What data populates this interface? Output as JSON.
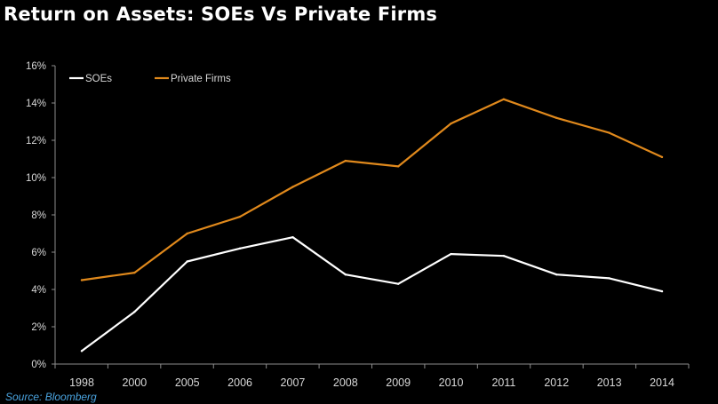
{
  "title": "Return on Assets: SOEs Vs Private Firms",
  "source": "Source: Bloomberg",
  "colors": {
    "background": "#000000",
    "soes": "#ffffff",
    "private_firms": "#e0891c",
    "axis_text": "#d8d8d8",
    "axis_line": "#8c8c8c",
    "source_text": "#4aa3df"
  },
  "chart_data": {
    "type": "line",
    "title": "Return on Assets: SOEs Vs Private Firms",
    "xlabel": "",
    "ylabel": "",
    "categories": [
      "1998",
      "2000",
      "2005",
      "2006",
      "2007",
      "2008",
      "2009",
      "2010",
      "2011",
      "2012",
      "2013",
      "2014"
    ],
    "yticks": [
      "0%",
      "2%",
      "4%",
      "6%",
      "8%",
      "10%",
      "12%",
      "14%",
      "16%"
    ],
    "ylim": [
      0,
      16
    ],
    "grid": false,
    "legend_position": "top-left",
    "series": [
      {
        "name": "SOEs",
        "color": "#ffffff",
        "values": [
          0.7,
          2.8,
          5.5,
          6.2,
          6.8,
          4.8,
          4.3,
          5.9,
          5.8,
          4.8,
          4.6,
          3.9
        ]
      },
      {
        "name": "Private Firms",
        "color": "#e0891c",
        "values": [
          4.5,
          4.9,
          7.0,
          7.9,
          9.5,
          10.9,
          10.6,
          12.9,
          14.2,
          13.2,
          12.4,
          11.1
        ]
      }
    ]
  }
}
